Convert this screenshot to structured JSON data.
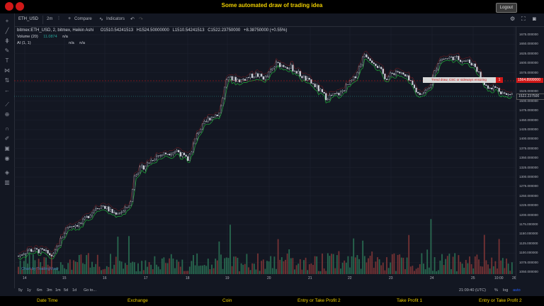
{
  "header": {
    "title": "Some automated draw of trading idea",
    "logout_label": "Logout"
  },
  "toolbar": {
    "symbol": "ETH_USD",
    "interval": "2m",
    "compare": "Compare",
    "indicators": "Indicators"
  },
  "legend": {
    "symbol_line": "bitmex:ETH_USD, 2, bitmex, Heikin Ashi",
    "open": "O1510.54241513",
    "high": "H1524.50000000",
    "low": "L1510.54241513",
    "close": "C1522.23750000",
    "change": "+8.38750000 (+0.55%)",
    "volume_label": "Volume (20)",
    "volume_value": "11.0874",
    "volume_na": "n/a",
    "ai_label": "AI (1, 1)",
    "ai_na1": "n/a",
    "ai_na2": "n/a"
  },
  "annotation": {
    "text": "Trend draw, CSC or sideways ensuring",
    "close": "1"
  },
  "price_axis": {
    "labels": [
      "1675.000000",
      "1650.000000",
      "1625.000000",
      "1600.000000",
      "1575.000000",
      "1550.000000",
      "1525.000000",
      "1500.000000",
      "1475.000000",
      "1450.000000",
      "1425.000000",
      "1400.000000",
      "1375.000000",
      "1350.000000",
      "1325.000000",
      "1300.000000",
      "1275.000000",
      "1250.000000",
      "1225.000000",
      "1200.000000",
      "1175.000000",
      "1150.000000",
      "1125.000000",
      "1100.000000",
      "1075.000000",
      "1050.000000"
    ],
    "marker_red": "1564.8999000",
    "marker_current": "1522.237500"
  },
  "time_axis": {
    "labels": [
      "14",
      "15",
      "16",
      "17",
      "18",
      "19",
      "20",
      "21",
      "22",
      "23",
      "24",
      "25",
      "26"
    ],
    "right_label": "10:00"
  },
  "bottom_toolbar": {
    "ranges": [
      "5y",
      "1y",
      "6m",
      "3m",
      "1m",
      "5d",
      "1d"
    ],
    "goto": "Go to...",
    "clock": "21:09:40 (UTC)",
    "pct": "%",
    "log": "log",
    "auto": "auto"
  },
  "watermark": "Chart by TradingView",
  "tabs": [
    "Date Time",
    "Exchange",
    "Coin",
    "Entry or Take Profit 2",
    "Take Profit 1",
    "Entry or Take Profit 2"
  ],
  "colors": {
    "up": "#26a69a",
    "down": "#ef5350",
    "trend_green": "#1fae3a",
    "trend_red": "#d12020",
    "accent": "#f0d000"
  },
  "icons": {
    "logo_left": "brand-logo-icon",
    "logo_right": "brand-logo-icon"
  }
}
